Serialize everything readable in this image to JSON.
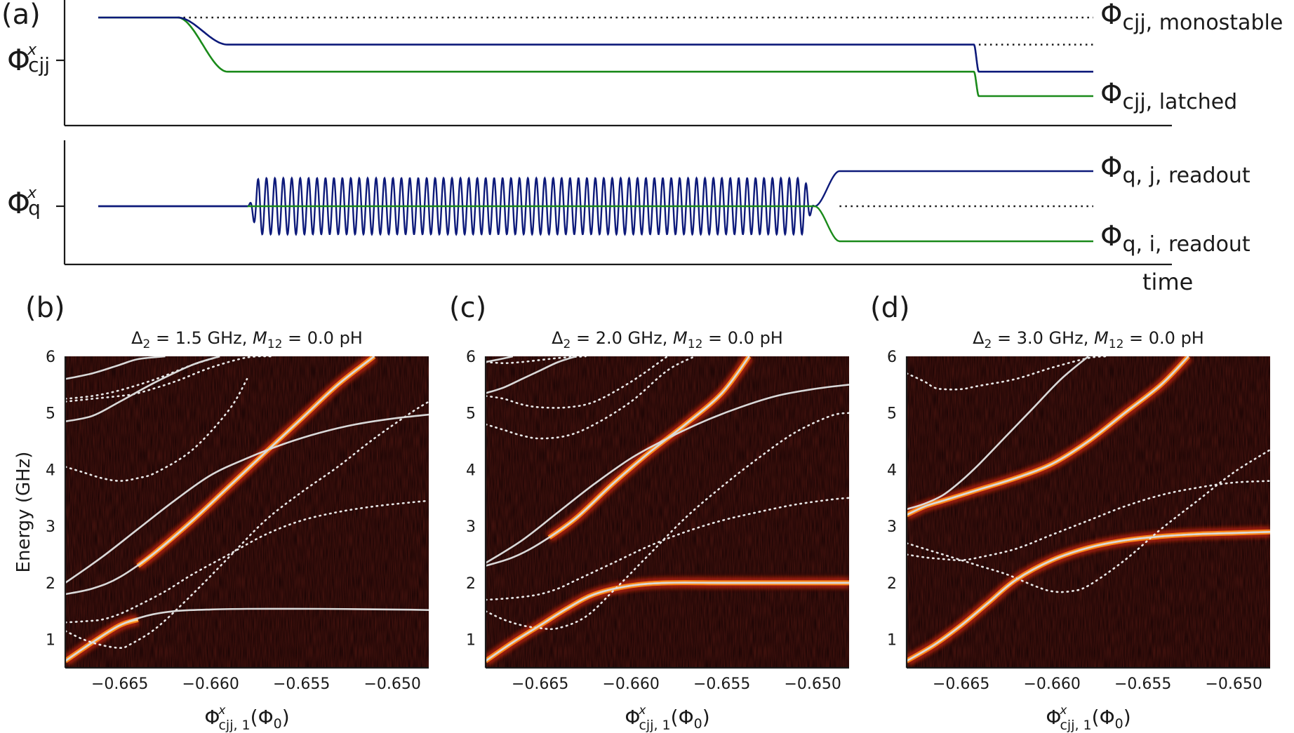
{
  "panel_a": {
    "label": "(a)",
    "top": {
      "ylabel_main": "Φ",
      "ylabel_sup": "x",
      "ylabel_sub": "cjj",
      "annot_monostable": {
        "main": "Φ",
        "sub": "cjj, monostable"
      },
      "annot_latched": {
        "main": "Φ",
        "sub": "cjj, latched"
      }
    },
    "bottom": {
      "ylabel_main": "Φ",
      "ylabel_sup": "x",
      "ylabel_sub": "q",
      "annot_j": {
        "main": "Φ",
        "sub": "q, j, readout"
      },
      "annot_i": {
        "main": "Φ",
        "sub": "q, i, readout"
      }
    },
    "xlabel": "time",
    "colors": {
      "series_j": "#0d1a7a",
      "series_i": "#1a8a1a",
      "reference": "#1a1a1a"
    }
  },
  "panels": [
    {
      "label": "(b)",
      "title_delta": "Δ",
      "title_delta_sub": "2",
      "title_delta_val": " = 1.5 GHz,  ",
      "title_m": "M",
      "title_m_sub": "12",
      "title_m_val": " = 0.0 pH",
      "ylabel": "Energy (GHz)",
      "xlabel_main": "Φ",
      "xlabel_sup": "x",
      "xlabel_sub": "cjj, 1",
      "xlabel_unit": "(Φ",
      "xlabel_unit_sub": "0",
      "xlabel_close": ")"
    },
    {
      "label": "(c)",
      "title_delta": "Δ",
      "title_delta_sub": "2",
      "title_delta_val": " = 2.0 GHz,  ",
      "title_m": "M",
      "title_m_sub": "12",
      "title_m_val": " = 0.0 pH",
      "xlabel_main": "Φ",
      "xlabel_sup": "x",
      "xlabel_sub": "cjj, 1",
      "xlabel_unit": "(Φ",
      "xlabel_unit_sub": "0",
      "xlabel_close": ")"
    },
    {
      "label": "(d)",
      "title_delta": "Δ",
      "title_delta_sub": "2",
      "title_delta_val": " = 3.0 GHz,  ",
      "title_m": "M",
      "title_m_sub": "12",
      "title_m_val": " = 0.0 pH",
      "xlabel_main": "Φ",
      "xlabel_sup": "x",
      "xlabel_sub": "cjj, 1",
      "xlabel_unit": "(Φ",
      "xlabel_unit_sub": "0",
      "xlabel_close": ")"
    }
  ],
  "chart_data": [
    {
      "type": "line",
      "panel": "(a) top",
      "xlabel": "time",
      "x": [
        0,
        0.08,
        0.13,
        0.155,
        0.87,
        0.88,
        0.885,
        1.0
      ],
      "series": [
        {
          "values": [
            1.0,
            1.0,
            0.5,
            0.5,
            0.5,
            0.5,
            0.0,
            0.0
          ]
        },
        {
          "values": [
            1.0,
            1.0,
            0.0,
            0.0,
            0.0,
            0.0,
            -0.45,
            -0.45
          ]
        }
      ],
      "reference_levels": [
        1.0,
        0.5,
        0.0
      ]
    },
    {
      "type": "line",
      "panel": "(a) bottom",
      "xlabel": "time",
      "x": [
        0,
        0.15,
        0.72,
        0.745,
        1.0
      ],
      "series": [
        {
          "values": [
            0,
            0,
            0,
            1,
            1
          ],
          "oscillation": true
        },
        {
          "values": [
            0,
            0,
            0,
            -1,
            -1
          ]
        }
      ],
      "reference_levels": [
        0
      ]
    },
    {
      "type": "heatmap",
      "panel": "(b)",
      "xlim": [
        -0.668,
        -0.648
      ],
      "ylim": [
        0.5,
        6.0
      ],
      "xticks": [
        "−0.665",
        "−0.660",
        "−0.655",
        "−0.650"
      ],
      "yticks": [
        "1",
        "2",
        "3",
        "4",
        "5",
        "6"
      ],
      "xtick_values": [
        -0.665,
        -0.66,
        -0.655,
        -0.65
      ],
      "ytick_values": [
        1,
        2,
        3,
        4,
        5,
        6
      ],
      "solid_lines": [
        {
          "x": [
            -0.668,
            -0.6665,
            -0.665,
            -0.6635,
            -0.662,
            -0.66,
            -0.658,
            -0.654,
            -0.65,
            -0.648
          ],
          "y": [
            0.62,
            0.95,
            1.25,
            1.42,
            1.5,
            1.53,
            1.54,
            1.54,
            1.53,
            1.52
          ]
        },
        {
          "x": [
            -0.668,
            -0.6665,
            -0.665,
            -0.663,
            -0.661,
            -0.659,
            -0.657,
            -0.655,
            -0.653,
            -0.651
          ],
          "y": [
            1.8,
            1.9,
            2.1,
            2.55,
            3.1,
            3.7,
            4.3,
            4.9,
            5.5,
            6.0
          ]
        },
        {
          "x": [
            -0.668,
            -0.666,
            -0.664,
            -0.662,
            -0.66,
            -0.658,
            -0.656,
            -0.654,
            -0.652,
            -0.65,
            -0.648
          ],
          "y": [
            2.0,
            2.45,
            2.95,
            3.45,
            3.9,
            4.2,
            4.45,
            4.65,
            4.8,
            4.9,
            4.97
          ]
        },
        {
          "x": [
            -0.668,
            -0.6665,
            -0.665,
            -0.663,
            -0.661,
            -0.6595
          ],
          "y": [
            4.85,
            4.95,
            5.2,
            5.55,
            5.85,
            6.0
          ]
        },
        {
          "x": [
            -0.668,
            -0.6665,
            -0.665,
            -0.664,
            -0.6625
          ],
          "y": [
            5.6,
            5.7,
            5.85,
            5.95,
            6.0
          ]
        }
      ],
      "dotted_lines": [
        {
          "x": [
            -0.668,
            -0.667,
            -0.666,
            -0.665,
            -0.664,
            -0.6625,
            -0.661,
            -0.659,
            -0.657,
            -0.655,
            -0.653,
            -0.651,
            -0.649,
            -0.648
          ],
          "y": [
            1.3,
            1.32,
            1.35,
            1.45,
            1.6,
            1.85,
            2.15,
            2.5,
            2.85,
            3.1,
            3.25,
            3.35,
            3.42,
            3.45
          ]
        },
        {
          "x": [
            -0.668,
            -0.667,
            -0.666,
            -0.665,
            -0.6645,
            -0.663,
            -0.661,
            -0.659,
            -0.657,
            -0.655,
            -0.653,
            -0.651,
            -0.649,
            -0.648
          ],
          "y": [
            1.15,
            1.0,
            0.9,
            0.85,
            0.9,
            1.2,
            1.8,
            2.45,
            3.1,
            3.6,
            4.05,
            4.55,
            5.0,
            5.2
          ]
        },
        {
          "x": [
            -0.668,
            -0.667,
            -0.666,
            -0.665,
            -0.664,
            -0.663,
            -0.661,
            -0.659,
            -0.658
          ],
          "y": [
            4.05,
            3.95,
            3.85,
            3.8,
            3.85,
            3.95,
            4.35,
            5.05,
            5.6
          ]
        },
        {
          "x": [
            -0.668,
            -0.6665,
            -0.665,
            -0.664,
            -0.662,
            -0.66,
            -0.658,
            -0.6565
          ],
          "y": [
            5.2,
            5.25,
            5.3,
            5.35,
            5.55,
            5.8,
            5.98,
            6.0
          ]
        },
        {
          "x": [
            -0.668,
            -0.6665,
            -0.665,
            -0.663,
            -0.661,
            -0.6595
          ],
          "y": [
            5.25,
            5.3,
            5.4,
            5.6,
            5.85,
            6.0
          ]
        }
      ],
      "spectral_peaks": [
        {
          "x": [
            -0.668,
            -0.6665,
            -0.665,
            -0.664
          ],
          "y": [
            0.62,
            0.95,
            1.25,
            1.35
          ]
        },
        {
          "x": [
            -0.664,
            -0.663,
            -0.661,
            -0.659,
            -0.657,
            -0.655,
            -0.653,
            -0.651
          ],
          "y": [
            2.3,
            2.55,
            3.1,
            3.7,
            4.3,
            4.9,
            5.5,
            6.0
          ]
        }
      ]
    },
    {
      "type": "heatmap",
      "panel": "(c)",
      "xlim": [
        -0.668,
        -0.648
      ],
      "ylim": [
        0.5,
        6.0
      ],
      "xticks": [
        "−0.665",
        "−0.660",
        "−0.655",
        "−0.650"
      ],
      "yticks": [
        "1",
        "2",
        "3",
        "4",
        "5",
        "6"
      ],
      "xtick_values": [
        -0.665,
        -0.66,
        -0.655,
        -0.65
      ],
      "ytick_values": [
        1,
        2,
        3,
        4,
        5,
        6
      ],
      "solid_lines": [
        {
          "x": [
            -0.668,
            -0.6665,
            -0.665,
            -0.6635,
            -0.662,
            -0.66,
            -0.658,
            -0.655,
            -0.652,
            -0.648
          ],
          "y": [
            0.62,
            0.95,
            1.25,
            1.55,
            1.8,
            1.95,
            2.0,
            2.0,
            2.0,
            2.0
          ]
        },
        {
          "x": [
            -0.668,
            -0.6665,
            -0.665,
            -0.663,
            -0.661,
            -0.659,
            -0.657,
            -0.655,
            -0.6535
          ],
          "y": [
            2.3,
            2.45,
            2.7,
            3.15,
            3.75,
            4.3,
            4.8,
            5.35,
            6.0
          ]
        },
        {
          "x": [
            -0.668,
            -0.666,
            -0.664,
            -0.662,
            -0.66,
            -0.658,
            -0.656,
            -0.654,
            -0.652,
            -0.65,
            -0.648
          ],
          "y": [
            2.35,
            2.75,
            3.25,
            3.75,
            4.2,
            4.55,
            4.85,
            5.1,
            5.3,
            5.42,
            5.5
          ]
        },
        {
          "x": [
            -0.668,
            -0.667,
            -0.666,
            -0.665,
            -0.664,
            -0.663
          ],
          "y": [
            5.35,
            5.45,
            5.6,
            5.75,
            5.9,
            6.0
          ]
        },
        {
          "x": [
            -0.668,
            -0.6672,
            -0.6665
          ],
          "y": [
            5.9,
            5.95,
            6.0
          ]
        }
      ],
      "dotted_lines": [
        {
          "x": [
            -0.668,
            -0.667,
            -0.666,
            -0.665,
            -0.664,
            -0.663,
            -0.661,
            -0.659,
            -0.657,
            -0.655,
            -0.653,
            -0.651,
            -0.649,
            -0.648
          ],
          "y": [
            1.7,
            1.72,
            1.75,
            1.8,
            1.9,
            2.05,
            2.35,
            2.65,
            2.9,
            3.1,
            3.25,
            3.38,
            3.47,
            3.5
          ]
        },
        {
          "x": [
            -0.668,
            -0.667,
            -0.666,
            -0.665,
            -0.664,
            -0.6625,
            -0.661,
            -0.659,
            -0.657,
            -0.655,
            -0.653,
            -0.651,
            -0.649,
            -0.648
          ],
          "y": [
            1.5,
            1.35,
            1.25,
            1.2,
            1.2,
            1.4,
            1.85,
            2.5,
            3.15,
            3.7,
            4.2,
            4.65,
            4.95,
            5.0
          ]
        },
        {
          "x": [
            -0.668,
            -0.667,
            -0.666,
            -0.665,
            -0.6635,
            -0.662,
            -0.66,
            -0.658,
            -0.6565
          ],
          "y": [
            4.8,
            4.7,
            4.6,
            4.55,
            4.6,
            4.8,
            5.2,
            5.75,
            6.0
          ]
        },
        {
          "x": [
            -0.668,
            -0.667,
            -0.666,
            -0.665,
            -0.6635,
            -0.662,
            -0.66,
            -0.658
          ],
          "y": [
            5.3,
            5.25,
            5.15,
            5.1,
            5.1,
            5.2,
            5.55,
            6.0
          ]
        },
        {
          "x": [
            -0.668,
            -0.667,
            -0.666,
            -0.664,
            -0.6625
          ],
          "y": [
            5.9,
            5.88,
            5.9,
            5.97,
            6.0
          ]
        }
      ],
      "spectral_peaks": [
        {
          "x": [
            -0.668,
            -0.6665,
            -0.665,
            -0.6635,
            -0.662,
            -0.66,
            -0.658,
            -0.655,
            -0.652,
            -0.648
          ],
          "y": [
            0.62,
            0.95,
            1.25,
            1.55,
            1.8,
            1.95,
            2.0,
            2.0,
            2.0,
            2.0
          ]
        },
        {
          "x": [
            -0.6645,
            -0.663,
            -0.661,
            -0.659,
            -0.657,
            -0.655,
            -0.6535
          ],
          "y": [
            2.8,
            3.15,
            3.75,
            4.3,
            4.8,
            5.35,
            6.0
          ]
        }
      ]
    },
    {
      "type": "heatmap",
      "panel": "(d)",
      "xlim": [
        -0.668,
        -0.648
      ],
      "ylim": [
        0.5,
        6.0
      ],
      "xticks": [
        "−0.665",
        "−0.660",
        "−0.655",
        "−0.650"
      ],
      "yticks": [
        "1",
        "2",
        "3",
        "4",
        "5",
        "6"
      ],
      "xtick_values": [
        -0.665,
        -0.66,
        -0.655,
        -0.65
      ],
      "ytick_values": [
        1,
        2,
        3,
        4,
        5,
        6
      ],
      "solid_lines": [
        {
          "x": [
            -0.668,
            -0.6665,
            -0.665,
            -0.6635,
            -0.662,
            -0.66,
            -0.658,
            -0.656,
            -0.654,
            -0.652,
            -0.65,
            -0.648
          ],
          "y": [
            0.62,
            0.9,
            1.25,
            1.65,
            2.05,
            2.4,
            2.62,
            2.75,
            2.82,
            2.86,
            2.88,
            2.9
          ]
        },
        {
          "x": [
            -0.668,
            -0.667,
            -0.666,
            -0.665,
            -0.664,
            -0.662,
            -0.66,
            -0.658,
            -0.656,
            -0.654,
            -0.6525
          ],
          "y": [
            3.2,
            3.35,
            3.45,
            3.55,
            3.65,
            3.85,
            4.1,
            4.5,
            5.0,
            5.5,
            6.0
          ]
        },
        {
          "x": [
            -0.668,
            -0.667,
            -0.666,
            -0.665,
            -0.664,
            -0.6625,
            -0.661,
            -0.6595,
            -0.658
          ],
          "y": [
            3.3,
            3.4,
            3.55,
            3.8,
            4.1,
            4.6,
            5.1,
            5.6,
            6.0
          ]
        }
      ],
      "dotted_lines": [
        {
          "x": [
            -0.668,
            -0.667,
            -0.666,
            -0.665,
            -0.664,
            -0.662,
            -0.66,
            -0.658,
            -0.656,
            -0.654,
            -0.652,
            -0.65,
            -0.648
          ],
          "y": [
            2.5,
            2.45,
            2.42,
            2.4,
            2.45,
            2.6,
            2.85,
            3.1,
            3.35,
            3.55,
            3.68,
            3.77,
            3.8
          ]
        },
        {
          "x": [
            -0.668,
            -0.667,
            -0.666,
            -0.665,
            -0.664,
            -0.6625,
            -0.661,
            -0.66,
            -0.659,
            -0.658,
            -0.656,
            -0.654,
            -0.652,
            -0.65,
            -0.648
          ],
          "y": [
            2.7,
            2.6,
            2.5,
            2.4,
            2.3,
            2.15,
            1.95,
            1.85,
            1.85,
            1.95,
            2.4,
            2.95,
            3.45,
            3.95,
            4.35
          ]
        },
        {
          "x": [
            -0.668,
            -0.667,
            -0.6665,
            -0.666,
            -0.665,
            -0.664,
            -0.662,
            -0.66,
            -0.658,
            -0.657
          ],
          "y": [
            5.7,
            5.55,
            5.45,
            5.42,
            5.42,
            5.48,
            5.6,
            5.8,
            5.97,
            6.0
          ]
        }
      ],
      "spectral_peaks": [
        {
          "x": [
            -0.668,
            -0.6665,
            -0.665,
            -0.6635,
            -0.662,
            -0.66,
            -0.658,
            -0.656,
            -0.654,
            -0.652,
            -0.65,
            -0.648
          ],
          "y": [
            0.62,
            0.9,
            1.25,
            1.65,
            2.05,
            2.4,
            2.62,
            2.75,
            2.82,
            2.86,
            2.88,
            2.9
          ]
        },
        {
          "x": [
            -0.668,
            -0.667,
            -0.666,
            -0.665,
            -0.664,
            -0.662,
            -0.66,
            -0.658,
            -0.656,
            -0.654,
            -0.6525
          ],
          "y": [
            3.2,
            3.35,
            3.45,
            3.55,
            3.65,
            3.85,
            4.1,
            4.5,
            5.0,
            5.5,
            6.0
          ]
        }
      ]
    }
  ]
}
